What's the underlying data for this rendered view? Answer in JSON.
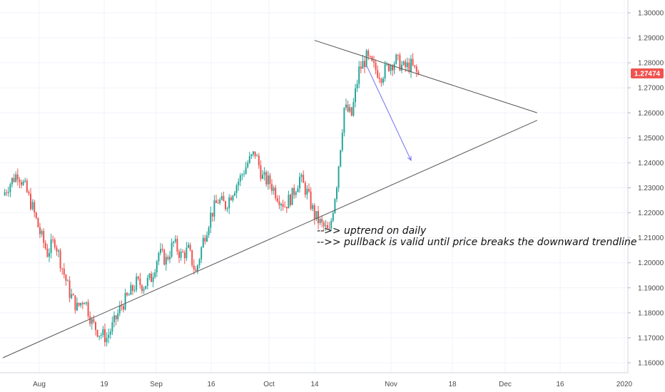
{
  "chart_data": {
    "type": "candlestick",
    "y_axis": {
      "ticks": [
        "1.30000",
        "1.29000",
        "1.28000",
        "1.27000",
        "1.26000",
        "1.25000",
        "1.24000",
        "1.23000",
        "1.22000",
        "1.21000",
        "1.20000",
        "1.19000",
        "1.18000",
        "1.17000",
        "1.16000"
      ],
      "ylim": [
        1.155,
        1.305
      ]
    },
    "x_axis": {
      "ticks": [
        "Aug",
        "19",
        "Sep",
        "16",
        "Oct",
        "14",
        "Nov",
        "18",
        "Dec",
        "16",
        "2020"
      ]
    },
    "current_price": {
      "label": "1.27474",
      "value": 1.27474,
      "color": "#ef5350"
    },
    "annotations": [
      "-->> uptrend on daily",
      "-->> pullback is valid until price breaks the downward trendline"
    ],
    "trendlines": {
      "ascending_support": {
        "from": {
          "date_index": 0,
          "price": 1.162
        },
        "to": {
          "date_index": 72,
          "price": 1.257
        }
      },
      "descending_resistance": {
        "from": {
          "date_index": 42,
          "price": 1.289
        },
        "to": {
          "date_index": 72,
          "price": 1.26
        }
      },
      "projection_arrow": {
        "from": {
          "date_index": 49,
          "price": 1.279
        },
        "to": {
          "date_index": 55,
          "price": 1.241
        },
        "color": "#6f6ff0"
      }
    },
    "colors": {
      "up": "#26a69a",
      "down": "#ef5350",
      "grid": "#f0f3fa",
      "trendline": "#555555"
    },
    "daily_closes": [
      1.227,
      1.232,
      1.236,
      1.23,
      1.222,
      1.212,
      1.204,
      1.209,
      1.198,
      1.188,
      1.182,
      1.186,
      1.176,
      1.172,
      1.17,
      1.176,
      1.183,
      1.187,
      1.192,
      1.191,
      1.194,
      1.204,
      1.201,
      1.208,
      1.203,
      1.205,
      1.196,
      1.209,
      1.219,
      1.225,
      1.223,
      1.229,
      1.234,
      1.24,
      1.244,
      1.234,
      1.232,
      1.227,
      1.223,
      1.227,
      1.234,
      1.228,
      1.219,
      1.215,
      1.212,
      1.232,
      1.262,
      1.259,
      1.277,
      1.282,
      1.278,
      1.275,
      1.279,
      1.281,
      1.278,
      1.279,
      1.275
    ]
  }
}
